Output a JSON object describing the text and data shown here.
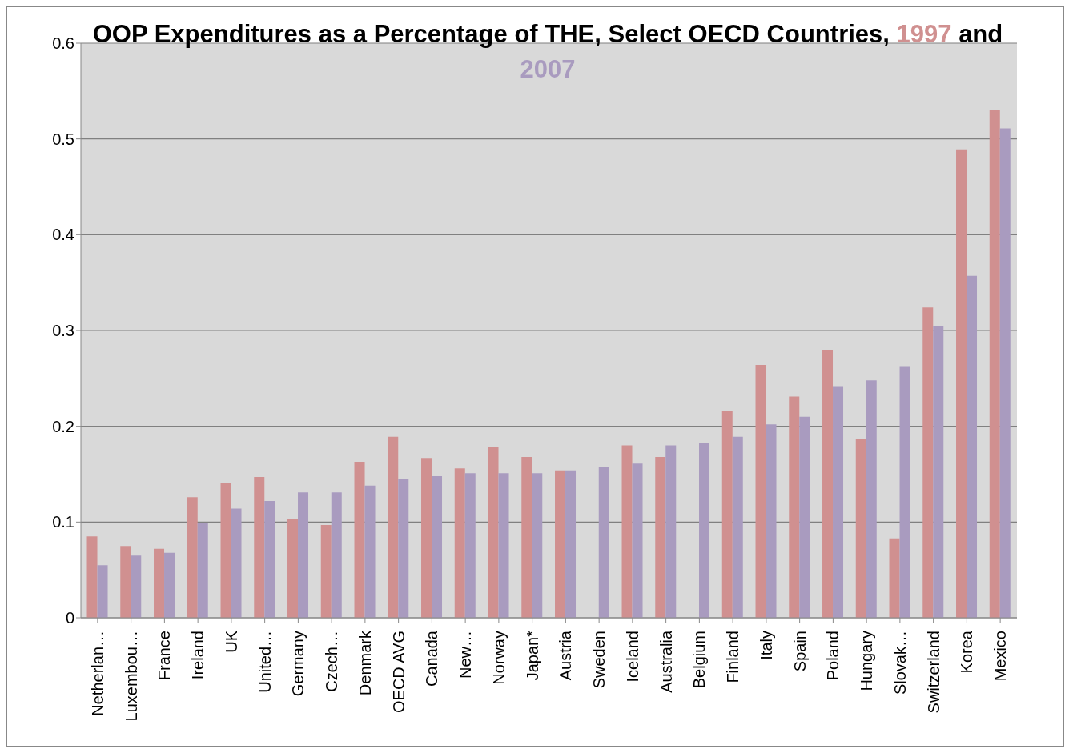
{
  "chart_data": {
    "type": "bar",
    "title": "OOP Expenditures as a Percentage of THE, Select OECD Countries,",
    "annotations": [
      "and"
    ],
    "categories": [
      "Netherlan…",
      "Luxembou…",
      "France",
      "Ireland",
      "UK",
      "United…",
      "Germany",
      "Czech…",
      "Denmark",
      "OECD AVG",
      "Canada",
      "New…",
      "Norway",
      "Japan*",
      "Austria",
      "Sweden",
      "Iceland",
      "Australia",
      "Belgium",
      "Finland",
      "Italy",
      "Spain",
      "Poland",
      "Hungary",
      "Slovak…",
      "Switzerland",
      "Korea",
      "Mexico"
    ],
    "series": [
      {
        "name": "1997",
        "color": "#d09090",
        "values": [
          0.085,
          0.075,
          0.072,
          0.126,
          0.141,
          0.147,
          0.103,
          0.097,
          0.163,
          0.189,
          0.167,
          0.156,
          0.178,
          0.168,
          0.154,
          null,
          0.18,
          0.168,
          null,
          0.216,
          0.264,
          0.231,
          0.28,
          0.187,
          0.083,
          0.324,
          0.489,
          0.53
        ]
      },
      {
        "name": "2007",
        "color": "#a99bbf",
        "values": [
          0.055,
          0.065,
          0.068,
          0.099,
          0.114,
          0.122,
          0.131,
          0.131,
          0.138,
          0.145,
          0.148,
          0.151,
          0.151,
          0.151,
          0.154,
          0.158,
          0.161,
          0.18,
          0.183,
          0.189,
          0.202,
          0.21,
          0.242,
          0.248,
          0.262,
          0.305,
          0.357,
          0.511
        ]
      }
    ],
    "ylim": [
      0,
      0.6
    ],
    "yticks": [
      0,
      0.1,
      0.2,
      0.3,
      0.4,
      0.5,
      0.6
    ],
    "grid": "y",
    "legend": "top"
  }
}
